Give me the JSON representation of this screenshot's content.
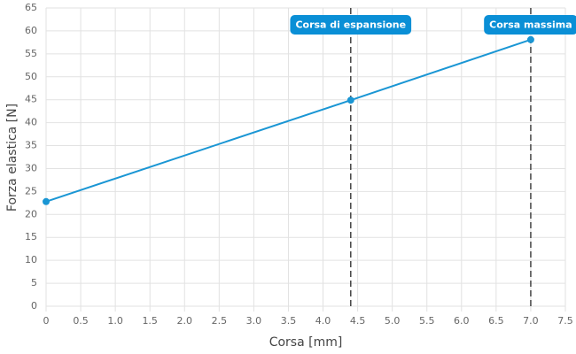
{
  "chart_data": {
    "type": "line",
    "x_label": "Corsa [mm]",
    "y_label": "Forza elastica [N]",
    "x": [
      0,
      4.4,
      7.0
    ],
    "series": [
      {
        "name": "Forza elastica",
        "color": "#1a96d4",
        "values": [
          22.8,
          44.9,
          58.1
        ]
      }
    ],
    "xlim": [
      0,
      7.5
    ],
    "xticks": [
      0,
      0.5,
      {
        "value": 1,
        "label": "1.0"
      },
      1.5,
      {
        "value": 2,
        "label": "2.0"
      },
      2.5,
      {
        "value": 3,
        "label": "3.0"
      },
      3.5,
      {
        "value": 4,
        "label": "4.0"
      },
      4.5,
      {
        "value": 5,
        "label": "5.0"
      },
      5.5,
      {
        "value": 6,
        "label": "6.0"
      },
      6.5,
      {
        "value": 7,
        "label": "7.0"
      },
      7.5
    ],
    "ylim": [
      0,
      65
    ],
    "yticks": [
      0,
      5,
      10,
      15,
      20,
      25,
      30,
      35,
      40,
      45,
      50,
      55,
      60,
      65
    ],
    "grid": true,
    "annotations": [
      {
        "x": 4.4,
        "label": "Corsa di espansione",
        "color": "#0a8fd6"
      },
      {
        "x": 7.0,
        "label": "Corsa massima",
        "color": "#0a8fd6"
      }
    ]
  }
}
